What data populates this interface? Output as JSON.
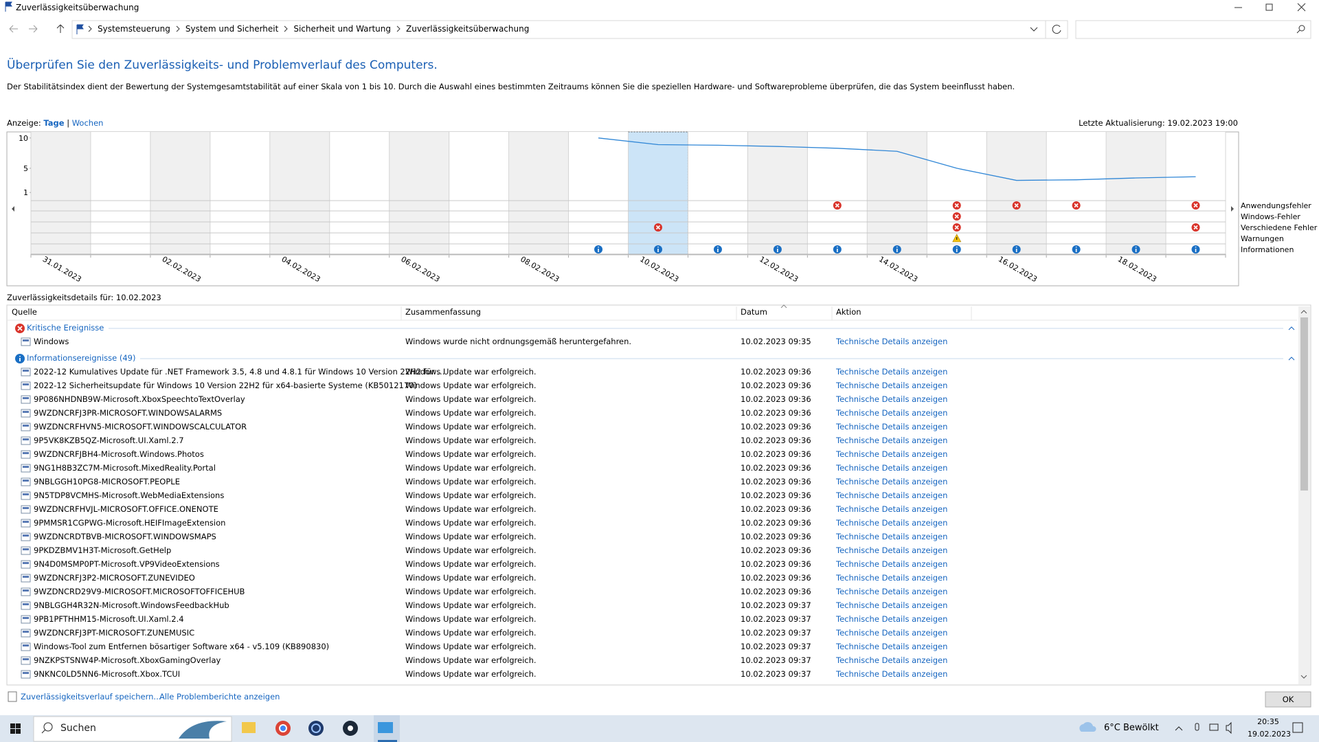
{
  "window": {
    "title": "Zuverlässigkeitsüberwachung",
    "breadcrumb": [
      "Systemsteuerung",
      "System und Sicherheit",
      "Sicherheit und Wartung",
      "Zuverlässigkeitsüberwachung"
    ]
  },
  "heading": "Überprüfen Sie den Zuverlässigkeits- und Problemverlauf des Computers.",
  "description": "Der Stabilitätsindex dient der Bewertung der Systemgesamtstabilität auf einer Skala von 1 bis 10. Durch die Auswahl eines bestimmten Zeitraums können Sie die speziellen Hardware- und Softwareprobleme überprüfen, die das System beeinflusst haben.",
  "view": {
    "label": "Anzeige:",
    "days": "Tage",
    "separator": "|",
    "weeks": "Wochen"
  },
  "last_update": "Letzte Aktualisierung: 19.02.2023 19:00",
  "chart_data": {
    "type": "line",
    "categories": [
      "31.01.2023",
      null,
      "02.02.2023",
      null,
      "04.02.2023",
      null,
      "06.02.2023",
      null,
      "08.02.2023",
      null,
      "10.02.2023",
      null,
      "12.02.2023",
      null,
      "14.02.2023",
      null,
      "16.02.2023",
      null,
      "18.02.2023",
      null
    ],
    "values": [
      null,
      null,
      null,
      null,
      null,
      null,
      null,
      null,
      null,
      10,
      8.9,
      8.8,
      8.6,
      8.3,
      7.8,
      5.0,
      3.0,
      3.1,
      3.4,
      3.6
    ],
    "color": "#2f86d6",
    "ylim": [
      0,
      11
    ],
    "yticks": [
      1,
      5,
      10
    ],
    "selected": 10,
    "event_rows": [
      {
        "name": "Anwendungsfehler",
        "cells": [
          null,
          null,
          null,
          null,
          null,
          null,
          null,
          null,
          null,
          null,
          null,
          null,
          null,
          "error",
          null,
          "error",
          "error",
          "error",
          null,
          "error"
        ]
      },
      {
        "name": "Windows-Fehler",
        "cells": [
          null,
          null,
          null,
          null,
          null,
          null,
          null,
          null,
          null,
          null,
          null,
          null,
          null,
          null,
          null,
          "error",
          null,
          null,
          null,
          null
        ]
      },
      {
        "name": "Verschiedene Fehler",
        "cells": [
          null,
          null,
          null,
          null,
          null,
          null,
          null,
          null,
          null,
          null,
          "error",
          null,
          null,
          null,
          null,
          "error",
          null,
          null,
          null,
          "error"
        ]
      },
      {
        "name": "Warnungen",
        "cells": [
          null,
          null,
          null,
          null,
          null,
          null,
          null,
          null,
          null,
          null,
          null,
          null,
          null,
          null,
          null,
          "warning",
          null,
          null,
          null,
          null
        ]
      },
      {
        "name": "Informationen",
        "cells": [
          null,
          null,
          null,
          null,
          null,
          null,
          null,
          null,
          null,
          "info",
          "info",
          "info",
          "info",
          "info",
          "info",
          "info",
          "info",
          "info",
          "info",
          "info"
        ]
      }
    ]
  },
  "details": {
    "title": "Zuverlässigkeitsdetails für: 10.02.2023",
    "columns": [
      "Quelle",
      "Zusammenfassung",
      "Datum",
      "Aktion"
    ],
    "groups": [
      {
        "title": "Kritische Ereignisse",
        "icon": "error",
        "rows": [
          [
            "Windows",
            "Windows wurde nicht ordnungsgemäß heruntergefahren.",
            "10.02.2023 09:35",
            "Technische Details anzeigen"
          ]
        ]
      },
      {
        "title": "Informationsereignisse (49)",
        "icon": "info",
        "rows": [
          [
            "2022-12 Kumulatives Update für .NET Framework 3.5, 4.8 und 4.8.1 für Windows 10 Version 22H2 für ...",
            "Windows Update war erfolgreich.",
            "10.02.2023 09:36",
            "Technische Details anzeigen"
          ],
          [
            "2022-12 Sicherheitsupdate für Windows 10 Version 22H2 für x64-basierte Systeme (KB5012170)",
            "Windows Update war erfolgreich.",
            "10.02.2023 09:36",
            "Technische Details anzeigen"
          ],
          [
            "9P086NHDNB9W-Microsoft.XboxSpeechtoTextOverlay",
            "Windows Update war erfolgreich.",
            "10.02.2023 09:36",
            "Technische Details anzeigen"
          ],
          [
            "9WZDNCRFJ3PR-MICROSOFT.WINDOWSALARMS",
            "Windows Update war erfolgreich.",
            "10.02.2023 09:36",
            "Technische Details anzeigen"
          ],
          [
            "9WZDNCRFHVN5-MICROSOFT.WINDOWSCALCULATOR",
            "Windows Update war erfolgreich.",
            "10.02.2023 09:36",
            "Technische Details anzeigen"
          ],
          [
            "9P5VK8KZB5QZ-Microsoft.UI.Xaml.2.7",
            "Windows Update war erfolgreich.",
            "10.02.2023 09:36",
            "Technische Details anzeigen"
          ],
          [
            "9WZDNCRFJBH4-Microsoft.Windows.Photos",
            "Windows Update war erfolgreich.",
            "10.02.2023 09:36",
            "Technische Details anzeigen"
          ],
          [
            "9NG1H8B3ZC7M-Microsoft.MixedReality.Portal",
            "Windows Update war erfolgreich.",
            "10.02.2023 09:36",
            "Technische Details anzeigen"
          ],
          [
            "9NBLGGH10PG8-MICROSOFT.PEOPLE",
            "Windows Update war erfolgreich.",
            "10.02.2023 09:36",
            "Technische Details anzeigen"
          ],
          [
            "9N5TDP8VCMHS-Microsoft.WebMediaExtensions",
            "Windows Update war erfolgreich.",
            "10.02.2023 09:36",
            "Technische Details anzeigen"
          ],
          [
            "9WZDNCRFHVJL-MICROSOFT.OFFICE.ONENOTE",
            "Windows Update war erfolgreich.",
            "10.02.2023 09:36",
            "Technische Details anzeigen"
          ],
          [
            "9PMMSR1CGPWG-Microsoft.HEIFImageExtension",
            "Windows Update war erfolgreich.",
            "10.02.2023 09:36",
            "Technische Details anzeigen"
          ],
          [
            "9WZDNCRDTBVB-MICROSOFT.WINDOWSMAPS",
            "Windows Update war erfolgreich.",
            "10.02.2023 09:36",
            "Technische Details anzeigen"
          ],
          [
            "9PKDZBMV1H3T-Microsoft.GetHelp",
            "Windows Update war erfolgreich.",
            "10.02.2023 09:36",
            "Technische Details anzeigen"
          ],
          [
            "9N4D0MSMP0PT-Microsoft.VP9VideoExtensions",
            "Windows Update war erfolgreich.",
            "10.02.2023 09:36",
            "Technische Details anzeigen"
          ],
          [
            "9WZDNCRFJ3P2-MICROSOFT.ZUNEVIDEO",
            "Windows Update war erfolgreich.",
            "10.02.2023 09:36",
            "Technische Details anzeigen"
          ],
          [
            "9WZDNCRD29V9-MICROSOFT.MICROSOFTOFFICEHUB",
            "Windows Update war erfolgreich.",
            "10.02.2023 09:36",
            "Technische Details anzeigen"
          ],
          [
            "9NBLGGH4R32N-Microsoft.WindowsFeedbackHub",
            "Windows Update war erfolgreich.",
            "10.02.2023 09:37",
            "Technische Details anzeigen"
          ],
          [
            "9PB1PFTHHM15-Microsoft.UI.Xaml.2.4",
            "Windows Update war erfolgreich.",
            "10.02.2023 09:37",
            "Technische Details anzeigen"
          ],
          [
            "9WZDNCRFJ3PT-MICROSOFT.ZUNEMUSIC",
            "Windows Update war erfolgreich.",
            "10.02.2023 09:37",
            "Technische Details anzeigen"
          ],
          [
            "Windows-Tool zum Entfernen bösartiger Software x64 - v5.109 (KB890830)",
            "Windows Update war erfolgreich.",
            "10.02.2023 09:37",
            "Technische Details anzeigen"
          ],
          [
            "9NZKPSTSNW4P-Microsoft.XboxGamingOverlay",
            "Windows Update war erfolgreich.",
            "10.02.2023 09:37",
            "Technische Details anzeigen"
          ],
          [
            "9NKNC0LD5NN6-Microsoft.Xbox.TCUI",
            "Windows Update war erfolgreich.",
            "10.02.2023 09:37",
            "Technische Details anzeigen"
          ]
        ]
      }
    ]
  },
  "footer": {
    "save_link": "Zuverlässigkeitsverlauf speichern...",
    "reports_link": "Alle Problemberichte anzeigen",
    "ok": "OK"
  },
  "taskbar": {
    "search": "Suchen",
    "weather": "6°C Bewölkt",
    "time": "20:35",
    "date": "19.02.2023"
  }
}
